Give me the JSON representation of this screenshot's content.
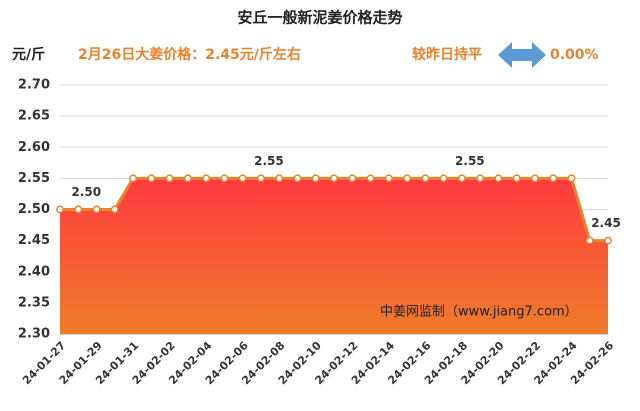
{
  "chart_data": {
    "type": "line",
    "title": "安丘一般新泥姜价格走势",
    "y_label": "元/斤",
    "annotations": [
      "2月26日大姜价格：2.45元/斤左右",
      "较昨日持平",
      "0.00%",
      "中姜网监制（www.jiang7.com）"
    ],
    "categories": [
      "24-01-27",
      null,
      "24-01-29",
      null,
      "24-01-31",
      null,
      "24-02-02",
      null,
      "24-02-04",
      null,
      "24-02-06",
      null,
      "24-02-08",
      null,
      "24-02-10",
      null,
      "24-02-12",
      null,
      "24-02-14",
      null,
      "24-02-16",
      null,
      "24-02-18",
      null,
      "24-02-20",
      null,
      "24-02-22",
      null,
      "24-02-24",
      null,
      "24-02-26"
    ],
    "values": [
      2.5,
      2.5,
      2.5,
      2.5,
      2.55,
      2.55,
      2.55,
      2.55,
      2.55,
      2.55,
      2.55,
      2.55,
      2.55,
      2.55,
      2.55,
      2.55,
      2.55,
      2.55,
      2.55,
      2.55,
      2.55,
      2.55,
      2.55,
      2.55,
      2.55,
      2.55,
      2.55,
      2.55,
      2.55,
      2.45,
      2.45
    ],
    "value_labels": [
      null,
      "2.50",
      null,
      null,
      null,
      null,
      null,
      null,
      null,
      null,
      null,
      "2.55",
      null,
      null,
      null,
      null,
      null,
      null,
      null,
      null,
      null,
      null,
      "2.55",
      null,
      null,
      null,
      null,
      null,
      null,
      null,
      "2.45"
    ],
    "color": "#e8822f",
    "area_colors": [
      "#ff3a3f",
      "#ee7d2c"
    ],
    "ylim": [
      2.3,
      2.7
    ],
    "yticks": [
      {
        "value": 2.3,
        "label": "2.30"
      },
      {
        "value": 2.35,
        "label": "2.35"
      },
      {
        "value": 2.4,
        "label": "2.40"
      },
      {
        "value": 2.45,
        "label": "2.45"
      },
      {
        "value": 2.5,
        "label": "2.50"
      },
      {
        "value": 2.55,
        "label": "2.55"
      },
      {
        "value": 2.6,
        "label": "2.60"
      },
      {
        "value": 2.65,
        "label": "2.65"
      },
      {
        "value": 2.7,
        "label": "2.70"
      }
    ],
    "grid": true
  }
}
